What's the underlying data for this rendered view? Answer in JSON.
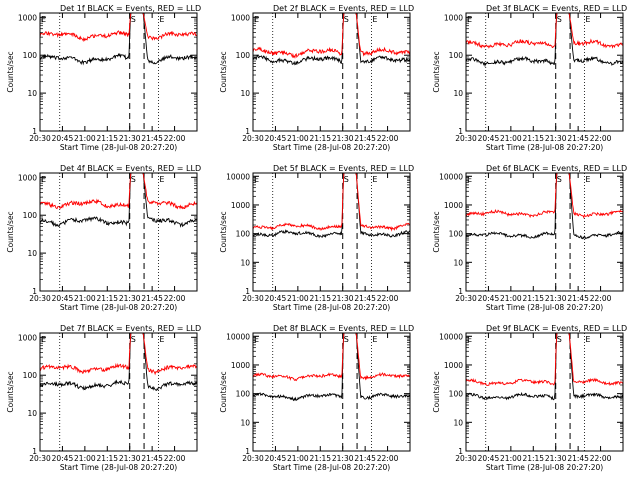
{
  "chart_data": [
    {
      "type": "line",
      "title": "Det 1f BLACK = Events, RED = LLD",
      "xlabel": "Start Time (28-Jul-08 20:27:20)",
      "ylabel": "Counts/sec",
      "ylim": [
        1,
        1300
      ],
      "yscale": "log",
      "ytick_labels": [
        "1",
        "10",
        "100",
        "1000"
      ],
      "xlim": [
        20.5,
        22.25
      ],
      "xtick_labels": [
        "20:30",
        "20:45",
        "21:00",
        "21:15",
        "21:30",
        "21:45",
        "22:00"
      ],
      "markers": [
        "E",
        "S",
        "E"
      ],
      "series": [
        {
          "name": "Events",
          "color": "#000000",
          "base": 80,
          "peak": 1300
        },
        {
          "name": "LLD",
          "color": "#ff0000",
          "base": 330,
          "peak": 1300
        }
      ]
    },
    {
      "type": "line",
      "title": "Det 2f BLACK = Events, RED = LLD",
      "xlabel": "Start Time (28-Jul-08 20:27:20)",
      "ylabel": "Counts/sec",
      "ylim": [
        1,
        1300
      ],
      "yscale": "log",
      "ytick_labels": [
        "1",
        "10",
        "100",
        "1000"
      ],
      "xlim": [
        20.5,
        22.25
      ],
      "xtick_labels": [
        "20:30",
        "20:45",
        "21:00",
        "21:15",
        "21:30",
        "21:45",
        "22:00"
      ],
      "markers": [
        "E",
        "S",
        "E"
      ],
      "series": [
        {
          "name": "Events",
          "color": "#000000",
          "base": 75,
          "peak": 1300
        },
        {
          "name": "LLD",
          "color": "#ff0000",
          "base": 120,
          "peak": 1300
        }
      ]
    },
    {
      "type": "line",
      "title": "Det 3f BLACK = Events, RED = LLD",
      "xlabel": "Start Time (28-Jul-08 20:27:20)",
      "ylabel": "Counts/sec",
      "ylim": [
        1,
        1300
      ],
      "yscale": "log",
      "ytick_labels": [
        "1",
        "10",
        "100",
        "1000"
      ],
      "xlim": [
        20.5,
        22.25
      ],
      "xtick_labels": [
        "20:30",
        "20:45",
        "21:00",
        "21:15",
        "21:30",
        "21:45",
        "22:00"
      ],
      "markers": [
        "E",
        "S",
        "E"
      ],
      "series": [
        {
          "name": "Events",
          "color": "#000000",
          "base": 70,
          "peak": 1300
        },
        {
          "name": "LLD",
          "color": "#ff0000",
          "base": 200,
          "peak": 1300
        }
      ]
    },
    {
      "type": "line",
      "title": "Det 4f BLACK = Events, RED = LLD",
      "xlabel": "Start Time (28-Jul-08 20:27:20)",
      "ylabel": "Counts/sec",
      "ylim": [
        1,
        1300
      ],
      "yscale": "log",
      "ytick_labels": [
        "1",
        "10",
        "100",
        "1000"
      ],
      "xlim": [
        20.5,
        22.25
      ],
      "xtick_labels": [
        "20:30",
        "20:45",
        "21:00",
        "21:15",
        "21:30",
        "21:45",
        "22:00"
      ],
      "markers": [
        "E",
        "S",
        "E"
      ],
      "series": [
        {
          "name": "Events",
          "color": "#000000",
          "base": 70,
          "peak": 1300
        },
        {
          "name": "LLD",
          "color": "#ff0000",
          "base": 200,
          "peak": 1300
        }
      ]
    },
    {
      "type": "line",
      "title": "Det 5f BLACK = Events, RED = LLD",
      "xlabel": "Start Time (28-Jul-08 20:27:20)",
      "ylabel": "Counts/sec",
      "ylim": [
        1,
        13000
      ],
      "yscale": "log",
      "ytick_labels": [
        "1",
        "10",
        "100",
        "1000",
        "10000"
      ],
      "xlim": [
        20.5,
        22.25
      ],
      "xtick_labels": [
        "20:30",
        "20:45",
        "21:00",
        "21:15",
        "21:30",
        "21:45",
        "22:00"
      ],
      "markers": [
        "E",
        "S",
        "E"
      ],
      "series": [
        {
          "name": "Events",
          "color": "#000000",
          "base": 100,
          "peak": 13000
        },
        {
          "name": "LLD",
          "color": "#ff0000",
          "base": 180,
          "peak": 13000
        }
      ]
    },
    {
      "type": "line",
      "title": "Det 6f BLACK = Events, RED = LLD",
      "xlabel": "Start Time (28-Jul-08 20:27:20)",
      "ylabel": "Counts/sec",
      "ylim": [
        1,
        13000
      ],
      "yscale": "log",
      "ytick_labels": [
        "1",
        "10",
        "100",
        "1000",
        "10000"
      ],
      "xlim": [
        20.5,
        22.25
      ],
      "xtick_labels": [
        "20:30",
        "20:45",
        "21:00",
        "21:15",
        "21:30",
        "21:45",
        "22:00"
      ],
      "markers": [
        "E",
        "S",
        "E"
      ],
      "series": [
        {
          "name": "Events",
          "color": "#000000",
          "base": 90,
          "peak": 13000
        },
        {
          "name": "LLD",
          "color": "#ff0000",
          "base": 500,
          "peak": 13000
        }
      ]
    },
    {
      "type": "line",
      "title": "Det 7f BLACK = Events, RED = LLD",
      "xlabel": "Start Time (28-Jul-08 20:27:20)",
      "ylabel": "Counts/sec",
      "ylim": [
        1,
        1300
      ],
      "yscale": "log",
      "ytick_labels": [
        "1",
        "10",
        "100",
        "1000"
      ],
      "xlim": [
        20.5,
        22.25
      ],
      "xtick_labels": [
        "20:30",
        "20:45",
        "21:00",
        "21:15",
        "21:30",
        "21:45",
        "22:00"
      ],
      "markers": [
        "E",
        "S",
        "E"
      ],
      "series": [
        {
          "name": "Events",
          "color": "#000000",
          "base": 55,
          "peak": 1300
        },
        {
          "name": "LLD",
          "color": "#ff0000",
          "base": 150,
          "peak": 1300
        }
      ]
    },
    {
      "type": "line",
      "title": "Det 8f BLACK = Events, RED = LLD",
      "xlabel": "Start Time (28-Jul-08 20:27:20)",
      "ylabel": "Counts/sec",
      "ylim": [
        1,
        13000
      ],
      "yscale": "log",
      "ytick_labels": [
        "1",
        "10",
        "100",
        "1000",
        "10000"
      ],
      "xlim": [
        20.5,
        22.25
      ],
      "xtick_labels": [
        "20:30",
        "20:45",
        "21:00",
        "21:15",
        "21:30",
        "21:45",
        "22:00"
      ],
      "markers": [
        "E",
        "S",
        "E"
      ],
      "series": [
        {
          "name": "Events",
          "color": "#000000",
          "base": 80,
          "peak": 13000
        },
        {
          "name": "LLD",
          "color": "#ff0000",
          "base": 400,
          "peak": 13000
        }
      ]
    },
    {
      "type": "line",
      "title": "Det 9f BLACK = Events, RED = LLD",
      "xlabel": "Start Time (28-Jul-08 20:27:20)",
      "ylabel": "Counts/sec",
      "ylim": [
        1,
        13000
      ],
      "yscale": "log",
      "ytick_labels": [
        "1",
        "10",
        "100",
        "1000",
        "10000"
      ],
      "xlim": [
        20.5,
        22.25
      ],
      "xtick_labels": [
        "20:30",
        "20:45",
        "21:00",
        "21:15",
        "21:30",
        "21:45",
        "22:00"
      ],
      "markers": [
        "E",
        "S",
        "E"
      ],
      "series": [
        {
          "name": "Events",
          "color": "#000000",
          "base": 80,
          "peak": 13000
        },
        {
          "name": "LLD",
          "color": "#ff0000",
          "base": 250,
          "peak": 13000
        }
      ]
    }
  ]
}
